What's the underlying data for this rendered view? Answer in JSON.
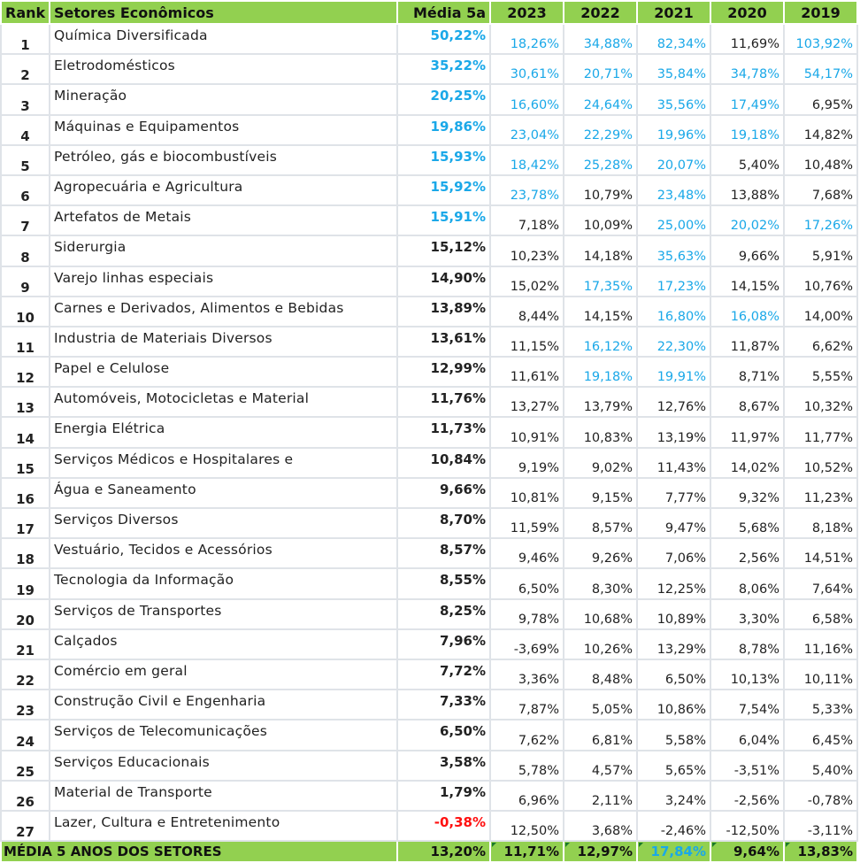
{
  "header": {
    "rank": "Rank",
    "sector": "Setores Econômicos",
    "media": "Média 5a",
    "years": [
      "2023",
      "2022",
      "2021",
      "2020",
      "2019"
    ]
  },
  "colors": {
    "header_bg": "#92d050",
    "highlight": "#1aa8e8",
    "negative": "#ff1010"
  },
  "rows": [
    {
      "rank": "1",
      "name": "Química Diversificada",
      "media": "50,22%",
      "media_color": "blue",
      "values": [
        "18,26%",
        "34,88%",
        "82,34%",
        "11,69%",
        "103,92%"
      ],
      "hl": [
        0,
        1,
        2,
        4
      ]
    },
    {
      "rank": "2",
      "name": "Eletrodomésticos",
      "media": "35,22%",
      "media_color": "blue",
      "values": [
        "30,61%",
        "20,71%",
        "35,84%",
        "34,78%",
        "54,17%"
      ],
      "hl": [
        0,
        1,
        2,
        3,
        4
      ]
    },
    {
      "rank": "3",
      "name": "Mineração",
      "media": "20,25%",
      "media_color": "blue",
      "values": [
        "16,60%",
        "24,64%",
        "35,56%",
        "17,49%",
        "6,95%"
      ],
      "hl": [
        0,
        1,
        2,
        3
      ]
    },
    {
      "rank": "4",
      "name": "Máquinas e Equipamentos",
      "media": "19,86%",
      "media_color": "blue",
      "values": [
        "23,04%",
        "22,29%",
        "19,96%",
        "19,18%",
        "14,82%"
      ],
      "hl": [
        0,
        1,
        2,
        3
      ]
    },
    {
      "rank": "5",
      "name": "Petróleo, gás e biocombustíveis",
      "media": "15,93%",
      "media_color": "blue",
      "values": [
        "18,42%",
        "25,28%",
        "20,07%",
        "5,40%",
        "10,48%"
      ],
      "hl": [
        0,
        1,
        2
      ]
    },
    {
      "rank": "6",
      "name": "Agropecuária e Agricultura",
      "media": "15,92%",
      "media_color": "blue",
      "values": [
        "23,78%",
        "10,79%",
        "23,48%",
        "13,88%",
        "7,68%"
      ],
      "hl": [
        0,
        2
      ]
    },
    {
      "rank": "7",
      "name": "Artefatos de Metais",
      "media": "15,91%",
      "media_color": "blue",
      "values": [
        "7,18%",
        "10,09%",
        "25,00%",
        "20,02%",
        "17,26%"
      ],
      "hl": [
        2,
        3,
        4
      ]
    },
    {
      "rank": "8",
      "name": "Siderurgia",
      "media": "15,12%",
      "media_color": "",
      "values": [
        "10,23%",
        "14,18%",
        "35,63%",
        "9,66%",
        "5,91%"
      ],
      "hl": [
        2
      ]
    },
    {
      "rank": "9",
      "name": "Varejo linhas especiais",
      "media": "14,90%",
      "media_color": "",
      "values": [
        "15,02%",
        "17,35%",
        "17,23%",
        "14,15%",
        "10,76%"
      ],
      "hl": [
        1,
        2
      ]
    },
    {
      "rank": "10",
      "name": "Carnes e Derivados, Alimentos e Bebidas",
      "media": "13,89%",
      "media_color": "",
      "values": [
        "8,44%",
        "14,15%",
        "16,80%",
        "16,08%",
        "14,00%"
      ],
      "hl": [
        2,
        3
      ]
    },
    {
      "rank": "11",
      "name": "Industria de Materiais Diversos",
      "media": "13,61%",
      "media_color": "",
      "values": [
        "11,15%",
        "16,12%",
        "22,30%",
        "11,87%",
        "6,62%"
      ],
      "hl": [
        1,
        2
      ]
    },
    {
      "rank": "12",
      "name": "Papel e Celulose",
      "media": "12,99%",
      "media_color": "",
      "values": [
        "11,61%",
        "19,18%",
        "19,91%",
        "8,71%",
        "5,55%"
      ],
      "hl": [
        1,
        2
      ]
    },
    {
      "rank": "13",
      "name": "Automóveis, Motocicletas e Material",
      "media": "11,76%",
      "media_color": "",
      "values": [
        "13,27%",
        "13,79%",
        "12,76%",
        "8,67%",
        "10,32%"
      ],
      "hl": []
    },
    {
      "rank": "14",
      "name": "Energia Elétrica",
      "media": "11,73%",
      "media_color": "",
      "values": [
        "10,91%",
        "10,83%",
        "13,19%",
        "11,97%",
        "11,77%"
      ],
      "hl": []
    },
    {
      "rank": "15",
      "name": "Serviços Médicos e Hospitalares e",
      "media": "10,84%",
      "media_color": "",
      "values": [
        "9,19%",
        "9,02%",
        "11,43%",
        "14,02%",
        "10,52%"
      ],
      "hl": []
    },
    {
      "rank": "16",
      "name": "Água e Saneamento",
      "media": "9,66%",
      "media_color": "",
      "values": [
        "10,81%",
        "9,15%",
        "7,77%",
        "9,32%",
        "11,23%"
      ],
      "hl": []
    },
    {
      "rank": "17",
      "name": "Serviços Diversos",
      "media": "8,70%",
      "media_color": "",
      "values": [
        "11,59%",
        "8,57%",
        "9,47%",
        "5,68%",
        "8,18%"
      ],
      "hl": []
    },
    {
      "rank": "18",
      "name": "Vestuário, Tecidos e Acessórios",
      "media": "8,57%",
      "media_color": "",
      "values": [
        "9,46%",
        "9,26%",
        "7,06%",
        "2,56%",
        "14,51%"
      ],
      "hl": []
    },
    {
      "rank": "19",
      "name": "Tecnologia da Informação",
      "media": "8,55%",
      "media_color": "",
      "values": [
        "6,50%",
        "8,30%",
        "12,25%",
        "8,06%",
        "7,64%"
      ],
      "hl": []
    },
    {
      "rank": "20",
      "name": "Serviços de Transportes",
      "media": "8,25%",
      "media_color": "",
      "values": [
        "9,78%",
        "10,68%",
        "10,89%",
        "3,30%",
        "6,58%"
      ],
      "hl": []
    },
    {
      "rank": "21",
      "name": "Calçados",
      "media": "7,96%",
      "media_color": "",
      "values": [
        "-3,69%",
        "10,26%",
        "13,29%",
        "8,78%",
        "11,16%"
      ],
      "hl": []
    },
    {
      "rank": "22",
      "name": "Comércio em geral",
      "media": "7,72%",
      "media_color": "",
      "values": [
        "3,36%",
        "8,48%",
        "6,50%",
        "10,13%",
        "10,11%"
      ],
      "hl": []
    },
    {
      "rank": "23",
      "name": "Construção Civil e Engenharia",
      "media": "7,33%",
      "media_color": "",
      "values": [
        "7,87%",
        "5,05%",
        "10,86%",
        "7,54%",
        "5,33%"
      ],
      "hl": []
    },
    {
      "rank": "24",
      "name": "Serviços de Telecomunicações",
      "media": "6,50%",
      "media_color": "",
      "values": [
        "7,62%",
        "6,81%",
        "5,58%",
        "6,04%",
        "6,45%"
      ],
      "hl": []
    },
    {
      "rank": "25",
      "name": "Serviços Educacionais",
      "media": "3,58%",
      "media_color": "",
      "values": [
        "5,78%",
        "4,57%",
        "5,65%",
        "-3,51%",
        "5,40%"
      ],
      "hl": []
    },
    {
      "rank": "26",
      "name": "Material de Transporte",
      "media": "1,79%",
      "media_color": "",
      "values": [
        "6,96%",
        "2,11%",
        "3,24%",
        "-2,56%",
        "-0,78%"
      ],
      "hl": []
    },
    {
      "rank": "27",
      "name": "Lazer, Cultura e Entretenimento",
      "media": "-0,38%",
      "media_color": "red",
      "values": [
        "12,50%",
        "3,68%",
        "-2,46%",
        "-12,50%",
        "-3,11%"
      ],
      "hl": []
    }
  ],
  "footer": {
    "label": "MÉDIA 5 ANOS DOS SETORES",
    "media": "13,20%",
    "values": [
      "11,71%",
      "12,97%",
      "17,84%",
      "9,64%",
      "13,83%"
    ],
    "hl": [
      2
    ]
  }
}
